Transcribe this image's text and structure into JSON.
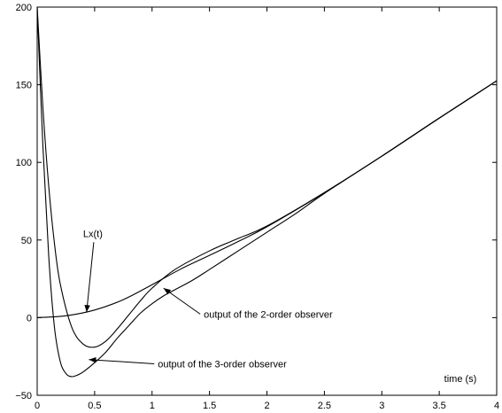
{
  "chart_data": {
    "type": "line",
    "title": "",
    "xlabel": "time (s)",
    "ylabel": "",
    "xlim": [
      0,
      4
    ],
    "ylim": [
      -50,
      200
    ],
    "grid": false,
    "legend": "none",
    "x_ticks": [
      {
        "value": 0,
        "label": "0"
      },
      {
        "value": 0.5,
        "label": "0.5"
      },
      {
        "value": 1,
        "label": "1"
      },
      {
        "value": 1.5,
        "label": "1.5"
      },
      {
        "value": 2,
        "label": "2"
      },
      {
        "value": 2.5,
        "label": "2.5"
      },
      {
        "value": 3,
        "label": "3"
      },
      {
        "value": 3.5,
        "label": "3.5"
      },
      {
        "value": 4,
        "label": "4"
      }
    ],
    "y_ticks": [
      {
        "value": -50,
        "label": "−50"
      },
      {
        "value": 0,
        "label": "0"
      },
      {
        "value": 50,
        "label": "50"
      },
      {
        "value": 100,
        "label": "100"
      },
      {
        "value": 150,
        "label": "150"
      },
      {
        "value": 200,
        "label": "200"
      }
    ],
    "series": [
      {
        "name": "Lx(t)",
        "x": [
          0,
          0.25,
          0.5,
          0.75,
          1.0,
          1.25,
          1.5,
          1.75,
          2.0,
          2.5,
          3.0,
          3.5,
          4.0
        ],
        "y": [
          0,
          1.2,
          4.9,
          11.6,
          21.2,
          31.3,
          40.1,
          49.0,
          58.5,
          80.5,
          104.0,
          128.5,
          152.5
        ]
      },
      {
        "name": "output of the 2-order observer",
        "x": [
          0,
          0.05,
          0.1,
          0.15,
          0.2,
          0.3,
          0.4,
          0.5,
          0.6,
          0.7,
          0.8,
          0.9,
          1.0,
          1.2,
          1.5,
          1.75,
          2.0,
          2.5,
          3.0,
          3.5,
          4.0
        ],
        "y": [
          200,
          135,
          85,
          48,
          22,
          -6,
          -17,
          -19,
          -15,
          -7,
          2,
          11,
          19,
          31,
          43,
          51,
          59,
          80.5,
          104.0,
          128.5,
          152.5
        ]
      },
      {
        "name": "output of the 3-order observer",
        "x": [
          0,
          0.05,
          0.1,
          0.15,
          0.2,
          0.25,
          0.3,
          0.35,
          0.4,
          0.5,
          0.6,
          0.7,
          0.8,
          0.9,
          1.0,
          1.1,
          1.2,
          1.35,
          1.5,
          1.75,
          2.0,
          2.25,
          2.5,
          3.0,
          3.5,
          4.0
        ],
        "y": [
          200,
          110,
          40,
          -6,
          -28,
          -36,
          -38,
          -37,
          -35,
          -29,
          -22,
          -13,
          -5,
          3,
          9,
          14,
          18,
          24,
          31,
          43,
          55,
          67,
          80,
          104.0,
          128.5,
          152.5
        ]
      }
    ],
    "annotations": [
      {
        "id": "lx",
        "text": "Lx(t)",
        "text_x": 0.4,
        "text_y": 52,
        "arrow_to_x": 0.43,
        "arrow_to_y": 3.5
      },
      {
        "id": "obs2",
        "text": "output of the 2-order observer",
        "text_x": 1.45,
        "text_y": 0,
        "arrow_to_x": 1.1,
        "arrow_to_y": 19
      },
      {
        "id": "obs3",
        "text": "output of the 3-order observer",
        "text_x": 1.05,
        "text_y": -32,
        "arrow_to_x": 0.45,
        "arrow_to_y": -27
      }
    ]
  }
}
